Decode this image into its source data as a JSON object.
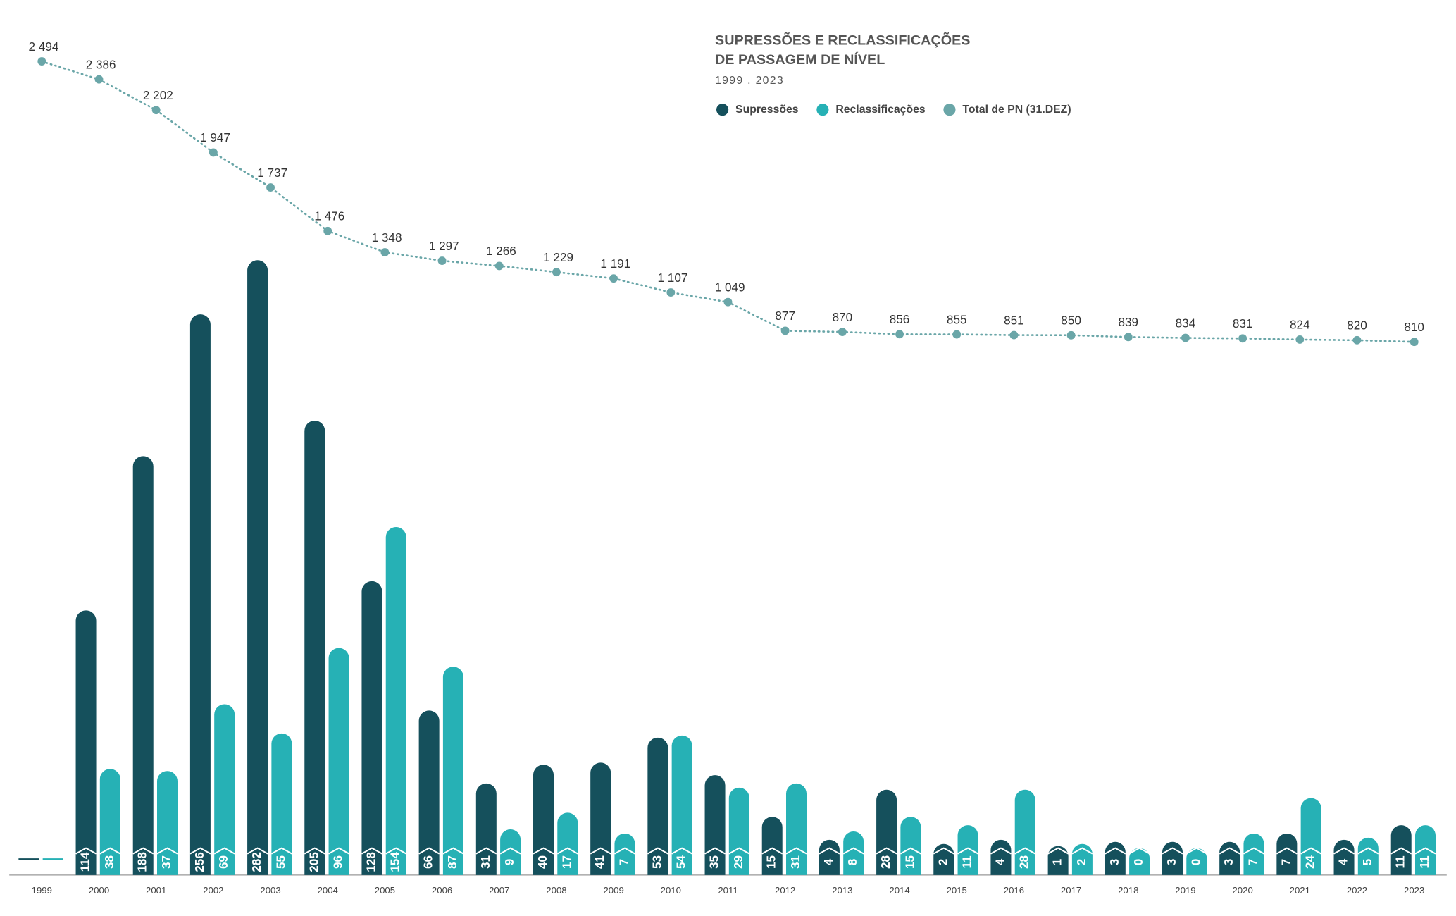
{
  "chart_data": {
    "type": "bar",
    "title": [
      "SUPRESSÕES E RECLASSIFICAÇÕES",
      "DE PASSAGEM DE NÍVEL"
    ],
    "subtitle": "1999 . 2023",
    "categories": [
      "1999",
      "2000",
      "2001",
      "2002",
      "2003",
      "2004",
      "2005",
      "2006",
      "2007",
      "2008",
      "2009",
      "2010",
      "2011",
      "2012",
      "2013",
      "2014",
      "2015",
      "2016",
      "2017",
      "2018",
      "2019",
      "2020",
      "2021",
      "2022",
      "2023"
    ],
    "series": [
      {
        "name": "Supressões",
        "color": "#15505c",
        "values": [
          null,
          114,
          188,
          256,
          282,
          205,
          128,
          66,
          31,
          40,
          41,
          53,
          35,
          15,
          4,
          28,
          2,
          4,
          1,
          3,
          3,
          3,
          7,
          4,
          11
        ]
      },
      {
        "name": "Reclassificações",
        "color": "#26b1b5",
        "values": [
          null,
          38,
          37,
          69,
          55,
          96,
          154,
          87,
          9,
          17,
          7,
          54,
          29,
          31,
          8,
          15,
          11,
          28,
          2,
          0,
          0,
          7,
          24,
          5,
          11
        ]
      },
      {
        "name": "Total de PN (31.DEZ)",
        "color": "#6aa6a8",
        "type": "line",
        "values": [
          2494,
          2386,
          2202,
          1947,
          1737,
          1476,
          1348,
          1297,
          1266,
          1229,
          1191,
          1107,
          1049,
          877,
          870,
          856,
          855,
          851,
          850,
          839,
          834,
          831,
          824,
          820,
          810
        ],
        "value_labels": [
          "2 494",
          "2 386",
          "2 202",
          "1 947",
          "1 737",
          "1 476",
          "1 348",
          "1 297",
          "1 266",
          "1 229",
          "1 191",
          "1 107",
          "1 049",
          "877",
          "870",
          "856",
          "855",
          "851",
          "850",
          "839",
          "834",
          "831",
          "824",
          "820",
          "810"
        ]
      }
    ]
  }
}
